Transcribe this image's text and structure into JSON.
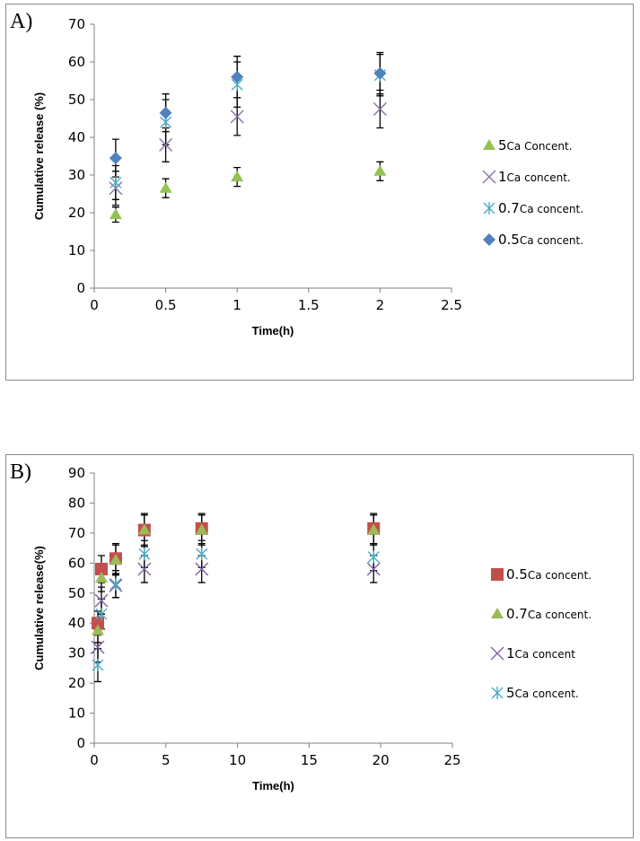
{
  "chart_data": [
    {
      "panel": "A)",
      "type": "scatter",
      "xlabel": "Time(h)",
      "ylabel": "Cumulative release (%)",
      "xlim": [
        0,
        2.5
      ],
      "ylim": [
        0,
        70
      ],
      "xticks": [
        "0",
        "0.5",
        "1",
        "1.5",
        "2",
        "2.5"
      ],
      "yticks": [
        "0",
        "10",
        "20",
        "30",
        "40",
        "50",
        "60",
        "70"
      ],
      "legend_position": "right",
      "series": [
        {
          "name_num": "5",
          "name_text": "Ca Concent.",
          "marker": "triangle",
          "color": "#92c353",
          "x": [
            0.15,
            0.5,
            1,
            2
          ],
          "y": [
            19.5,
            26.5,
            29.5,
            31
          ],
          "err": [
            2,
            2.5,
            2.5,
            2.5
          ]
        },
        {
          "name_num": "1",
          "name_text": "Ca concent.",
          "marker": "x",
          "color": "#8672a8",
          "x": [
            0.15,
            0.5,
            1,
            2
          ],
          "y": [
            26.5,
            38,
            45.5,
            47.5
          ],
          "err": [
            4.5,
            4.5,
            5,
            5
          ]
        },
        {
          "name_num": "0.7",
          "name_text": "Ca concent.",
          "marker": "asterisk",
          "color": "#4bacc6",
          "x": [
            0.15,
            0.5,
            1,
            2
          ],
          "y": [
            28,
            44,
            54,
            56.5
          ],
          "err": [
            4.5,
            6,
            6,
            5.5
          ]
        },
        {
          "name_num": "0.5",
          "name_text": "Ca concent.",
          "marker": "diamond",
          "color": "#4f81bd",
          "x": [
            0.15,
            0.5,
            1,
            2
          ],
          "y": [
            34.5,
            46.5,
            56,
            57
          ],
          "err": [
            5,
            5,
            5.5,
            5.5
          ]
        }
      ]
    },
    {
      "panel": "B)",
      "type": "scatter",
      "xlabel": "Time(h)",
      "ylabel": "Cumulative release(%)",
      "xlim": [
        0,
        25
      ],
      "ylim": [
        0,
        90
      ],
      "xticks": [
        "0",
        "5",
        "10",
        "15",
        "20",
        "25"
      ],
      "yticks": [
        "0",
        "10",
        "20",
        "30",
        "40",
        "50",
        "60",
        "70",
        "80",
        "90"
      ],
      "legend_position": "right",
      "series": [
        {
          "name_num": "0.5",
          "name_text": "Ca concent.",
          "marker": "square",
          "color": "#c0504d",
          "x": [
            0.25,
            0.5,
            1.5,
            3.5,
            7.5,
            19.5
          ],
          "y": [
            40,
            58,
            61.5,
            71,
            71.5,
            71.5
          ],
          "err": [
            4,
            4.5,
            5,
            5.5,
            5,
            5
          ]
        },
        {
          "name_num": "0.7",
          "name_text": "Ca concent.",
          "marker": "triangle",
          "color": "#9bbb59",
          "x": [
            0.25,
            0.5,
            1.5,
            3.5,
            7.5,
            19.5
          ],
          "y": [
            37.5,
            55,
            61,
            71,
            71,
            71
          ],
          "err": [
            4,
            4.5,
            5,
            5,
            5,
            5
          ]
        },
        {
          "name_num": "1",
          "name_text": "Ca concent",
          "marker": "x",
          "color": "#8064a2",
          "x": [
            0.25,
            0.5,
            1.5,
            3.5,
            7.5,
            19.5
          ],
          "y": [
            32,
            47.5,
            52.5,
            58,
            58,
            58
          ],
          "err": [
            5,
            4.5,
            4,
            4.5,
            4.5,
            4.5
          ]
        },
        {
          "name_num": "5",
          "name_text": "Ca concent.",
          "marker": "asterisk",
          "color": "#4bacc6",
          "x": [
            0.25,
            0.5,
            1.5,
            3.5,
            7.5,
            19.5
          ],
          "y": [
            26,
            43,
            53,
            63,
            63,
            62
          ],
          "err": [
            5.5,
            5,
            4.5,
            4.5,
            4.5,
            4.5
          ]
        }
      ]
    }
  ]
}
